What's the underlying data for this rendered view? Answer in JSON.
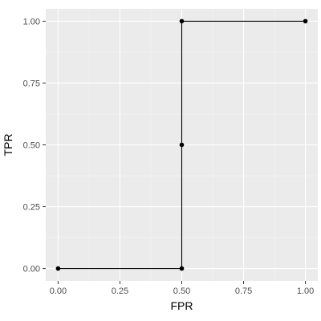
{
  "chart_data": {
    "type": "line",
    "title": "",
    "xlabel": "FPR",
    "ylabel": "TPR",
    "xlim": [
      -0.05,
      1.05
    ],
    "ylim": [
      -0.05,
      1.05
    ],
    "x_ticks": [
      0.0,
      0.25,
      0.5,
      0.75,
      1.0
    ],
    "y_ticks": [
      0.0,
      0.25,
      0.5,
      0.75,
      1.0
    ],
    "x_tick_labels": [
      "0.00",
      "0.25",
      "0.50",
      "0.75",
      "1.00"
    ],
    "y_tick_labels": [
      "0.00",
      "0.25",
      "0.50",
      "0.75",
      "1.00"
    ],
    "grid": true,
    "legend": "none",
    "series": [
      {
        "x": [
          0.0,
          0.5,
          0.5,
          0.5,
          1.0
        ],
        "y": [
          0.0,
          0.0,
          0.5,
          1.0,
          1.0
        ],
        "line_color": "#000000",
        "point_color": "#000000",
        "markers": true
      }
    ],
    "colors": {
      "panel_background": "#ebebeb",
      "grid_major": "#ffffff",
      "grid_minor": "#f5f5f5",
      "axis_text": "#4d4d4d",
      "axis_title": "#000000"
    }
  }
}
